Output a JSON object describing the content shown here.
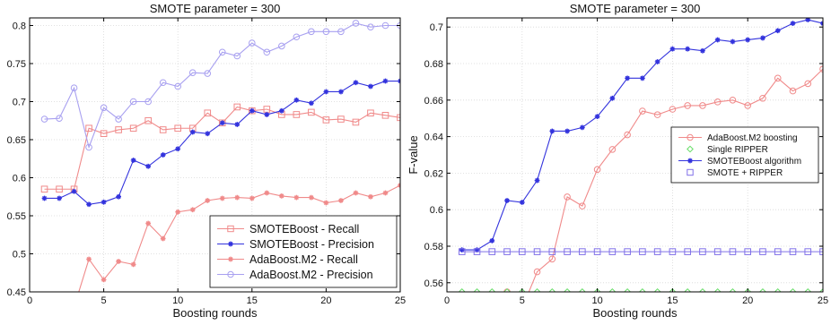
{
  "colors": {
    "red": "#f08a8a",
    "blue": "#3333dd",
    "lavender": "#a8a0f0",
    "green": "#66dd66",
    "purple": "#8070e8",
    "frame": "#000000",
    "plot_bg": "#ffffff"
  },
  "chart_data": [
    {
      "type": "line",
      "title": "SMOTE parameter = 300",
      "xlabel": "Boosting rounds",
      "ylabel": "",
      "xlim": [
        0,
        25
      ],
      "ylim": [
        0.45,
        0.81
      ],
      "xticks": [
        0,
        5,
        10,
        15,
        20,
        25
      ],
      "yticks": [
        0.45,
        0.5,
        0.55,
        0.6,
        0.65,
        0.7,
        0.75,
        0.8
      ],
      "ytick_labels": [
        "0.45",
        "0.5",
        "0.55",
        "0.6",
        "0.65",
        "0.7",
        "0.75",
        "0.8"
      ],
      "grid": true,
      "legend_position": "lower-right",
      "legend_size": "large",
      "x": [
        1,
        2,
        3,
        4,
        5,
        6,
        7,
        8,
        9,
        10,
        11,
        12,
        13,
        14,
        15,
        16,
        17,
        18,
        19,
        20,
        21,
        22,
        23,
        24,
        25
      ],
      "series": [
        {
          "name": "SMOTEBoost - Recall",
          "color": "red",
          "marker": "square",
          "values": [
            0.585,
            0.585,
            0.585,
            0.665,
            0.658,
            0.663,
            0.665,
            0.675,
            0.663,
            0.665,
            0.665,
            0.685,
            0.672,
            0.693,
            0.688,
            0.69,
            0.683,
            0.683,
            0.686,
            0.676,
            0.677,
            0.673,
            0.685,
            0.682,
            0.679
          ]
        },
        {
          "name": "SMOTEBoost - Precision",
          "color": "blue",
          "marker": "star",
          "values": [
            0.573,
            0.573,
            0.582,
            0.565,
            0.568,
            0.575,
            0.623,
            0.615,
            0.63,
            0.638,
            0.66,
            0.658,
            0.672,
            0.67,
            0.688,
            0.683,
            0.688,
            0.702,
            0.698,
            0.713,
            0.713,
            0.725,
            0.72,
            0.727,
            0.727
          ]
        },
        {
          "name": "AdaBoost.M2 - Recall",
          "color": "red",
          "marker": "star",
          "values": [
            0.43,
            0.43,
            0.43,
            0.493,
            0.466,
            0.49,
            0.486,
            0.54,
            0.52,
            0.555,
            0.558,
            0.57,
            0.573,
            0.574,
            0.573,
            0.58,
            0.576,
            0.574,
            0.574,
            0.567,
            0.57,
            0.58,
            0.575,
            0.58,
            0.59
          ]
        },
        {
          "name": "AdaBoost.M2 - Precision",
          "color": "lavender",
          "marker": "circle",
          "values": [
            0.677,
            0.678,
            0.718,
            0.64,
            0.692,
            0.677,
            0.7,
            0.7,
            0.725,
            0.72,
            0.738,
            0.737,
            0.765,
            0.76,
            0.777,
            0.765,
            0.773,
            0.785,
            0.792,
            0.792,
            0.792,
            0.803,
            0.798,
            0.8,
            0.8
          ]
        }
      ]
    },
    {
      "type": "line",
      "title": "SMOTE parameter = 300",
      "xlabel": "Boosting rounds",
      "ylabel": "F-value",
      "xlim": [
        0,
        25
      ],
      "ylim": [
        0.555,
        0.705
      ],
      "xticks": [
        0,
        5,
        10,
        15,
        20,
        25
      ],
      "yticks": [
        0.56,
        0.58,
        0.6,
        0.62,
        0.64,
        0.66,
        0.68,
        0.7
      ],
      "ytick_labels": [
        "0.56",
        "0.58",
        "0.6",
        "0.62",
        "0.64",
        "0.66",
        "0.68",
        "0.7"
      ],
      "grid": true,
      "legend_position": "center-right",
      "legend_size": "small",
      "x": [
        1,
        2,
        3,
        4,
        5,
        6,
        7,
        8,
        9,
        10,
        11,
        12,
        13,
        14,
        15,
        16,
        17,
        18,
        19,
        20,
        21,
        22,
        23,
        24,
        25
      ],
      "series": [
        {
          "name": "AdaBoost.M2 boosting",
          "color": "red",
          "marker": "circle",
          "values": [
            0.546,
            0.546,
            0.546,
            0.555,
            0.546,
            0.566,
            0.573,
            0.607,
            0.602,
            0.622,
            0.633,
            0.641,
            0.654,
            0.652,
            0.655,
            0.657,
            0.657,
            0.659,
            0.66,
            0.657,
            0.661,
            0.672,
            0.665,
            0.669,
            0.677
          ]
        },
        {
          "name": "Single RIPPER",
          "color": "green",
          "marker": "diamond",
          "values": [
            0.555,
            0.555,
            0.555,
            0.555,
            0.555,
            0.555,
            0.555,
            0.555,
            0.555,
            0.555,
            0.555,
            0.555,
            0.555,
            0.555,
            0.555,
            0.555,
            0.555,
            0.555,
            0.555,
            0.555,
            0.555,
            0.555,
            0.555,
            0.555,
            0.555
          ]
        },
        {
          "name": "SMOTEBoost algorithm",
          "color": "blue",
          "marker": "star",
          "values": [
            0.578,
            0.578,
            0.583,
            0.605,
            0.604,
            0.616,
            0.643,
            0.643,
            0.645,
            0.651,
            0.661,
            0.672,
            0.672,
            0.681,
            0.688,
            0.688,
            0.687,
            0.693,
            0.692,
            0.693,
            0.694,
            0.698,
            0.702,
            0.704,
            0.702
          ]
        },
        {
          "name": "SMOTE + RIPPER",
          "color": "purple",
          "marker": "square",
          "values": [
            0.577,
            0.577,
            0.577,
            0.577,
            0.577,
            0.577,
            0.577,
            0.577,
            0.577,
            0.577,
            0.577,
            0.577,
            0.577,
            0.577,
            0.577,
            0.577,
            0.577,
            0.577,
            0.577,
            0.577,
            0.577,
            0.577,
            0.577,
            0.577,
            0.577
          ]
        }
      ]
    }
  ]
}
